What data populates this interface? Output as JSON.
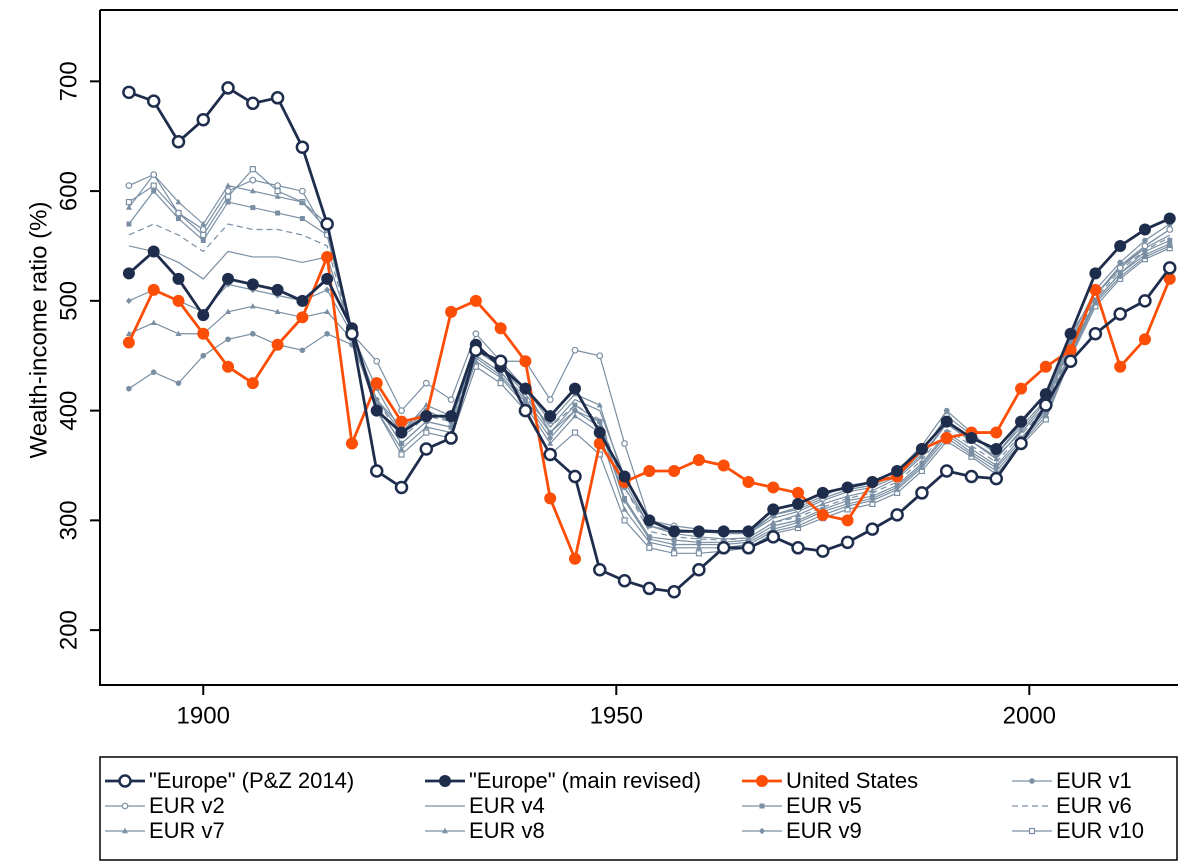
{
  "chart_data": {
    "type": "line",
    "ylabel": "Wealth-income ratio (%)",
    "x": [
      1891,
      1894,
      1897,
      1900,
      1903,
      1906,
      1909,
      1912,
      1915,
      1918,
      1921,
      1924,
      1927,
      1930,
      1933,
      1936,
      1939,
      1942,
      1945,
      1948,
      1951,
      1954,
      1957,
      1960,
      1963,
      1966,
      1969,
      1972,
      1975,
      1978,
      1981,
      1984,
      1987,
      1990,
      1993,
      1996,
      1999,
      2002,
      2005,
      2008,
      2011,
      2014,
      2017
    ],
    "xlim": [
      1887.5,
      2018
    ],
    "xticks": [
      1900,
      1950,
      2000
    ],
    "ylim": [
      150,
      765
    ],
    "yticks": [
      200,
      300,
      400,
      500,
      600,
      700
    ],
    "series": [
      {
        "name": "\"Europe\" (P&Z 2014)",
        "color": "#1f2d4d",
        "marker": "open-circle",
        "dash": false,
        "values": [
          690,
          682,
          645,
          665,
          694,
          680,
          685,
          640,
          570,
          470,
          345,
          330,
          365,
          375,
          455,
          445,
          400,
          360,
          340,
          255,
          245,
          238,
          235,
          255,
          275,
          275,
          285,
          275,
          272,
          280,
          292,
          305,
          325,
          345,
          340,
          338,
          370,
          405,
          445,
          470,
          488,
          500,
          530
        ]
      },
      {
        "name": "\"Europe\" (main revised)",
        "color": "#1f2d4d",
        "marker": "circle",
        "dash": false,
        "values": [
          525,
          545,
          520,
          487,
          520,
          515,
          510,
          500,
          520,
          475,
          400,
          380,
          395,
          395,
          460,
          440,
          420,
          395,
          420,
          380,
          340,
          300,
          290,
          290,
          290,
          290,
          310,
          315,
          325,
          330,
          335,
          345,
          365,
          390,
          375,
          365,
          390,
          415,
          470,
          525,
          550,
          565,
          575
        ]
      },
      {
        "name": "United States",
        "color": "#fc4e07",
        "marker": "circle",
        "dash": false,
        "values": [
          462,
          510,
          500,
          470,
          440,
          425,
          460,
          485,
          540,
          370,
          425,
          390,
          395,
          490,
          500,
          475,
          445,
          320,
          265,
          370,
          335,
          345,
          345,
          355,
          350,
          335,
          330,
          325,
          305,
          300,
          335,
          340,
          365,
          375,
          380,
          380,
          420,
          440,
          455,
          510,
          440,
          465,
          520
        ]
      },
      {
        "name": "EUR v1",
        "color": "#7a8fa3",
        "marker": "small-circle",
        "dash": false,
        "values": [
          420,
          435,
          425,
          450,
          465,
          470,
          460,
          455,
          470,
          460,
          410,
          385,
          400,
          390,
          455,
          445,
          420,
          380,
          400,
          390,
          330,
          295,
          290,
          290,
          288,
          288,
          305,
          312,
          322,
          332,
          335,
          345,
          368,
          400,
          380,
          360,
          385,
          410,
          465,
          510,
          535,
          555,
          570
        ]
      },
      {
        "name": "EUR v2",
        "color": "#7a8fa3",
        "marker": "small-open-circle",
        "dash": false,
        "values": [
          605,
          615,
          580,
          565,
          600,
          610,
          605,
          600,
          560,
          470,
          445,
          400,
          425,
          410,
          470,
          445,
          445,
          410,
          455,
          450,
          370,
          300,
          295,
          292,
          290,
          290,
          305,
          310,
          320,
          328,
          332,
          342,
          362,
          395,
          378,
          360,
          388,
          415,
          470,
          505,
          530,
          550,
          565
        ]
      },
      {
        "name": "EUR v4",
        "color": "#7a8fa3",
        "marker": "none",
        "dash": false,
        "values": [
          550,
          545,
          535,
          520,
          545,
          540,
          540,
          535,
          540,
          470,
          410,
          380,
          400,
          390,
          455,
          440,
          415,
          385,
          410,
          400,
          340,
          300,
          292,
          290,
          288,
          288,
          302,
          308,
          318,
          326,
          330,
          340,
          360,
          388,
          372,
          358,
          380,
          405,
          460,
          505,
          530,
          548,
          560
        ]
      },
      {
        "name": "EUR v5",
        "color": "#7a8fa3",
        "marker": "square",
        "dash": false,
        "values": [
          570,
          600,
          575,
          555,
          590,
          585,
          580,
          575,
          560,
          470,
          405,
          370,
          390,
          385,
          450,
          435,
          410,
          380,
          405,
          390,
          320,
          285,
          282,
          280,
          280,
          282,
          295,
          300,
          310,
          318,
          322,
          332,
          352,
          380,
          365,
          350,
          375,
          400,
          455,
          500,
          525,
          545,
          555
        ]
      },
      {
        "name": "EUR v6",
        "color": "#7a8fa3",
        "marker": "none",
        "dash": true,
        "values": [
          560,
          570,
          560,
          545,
          570,
          565,
          565,
          560,
          550,
          470,
          410,
          375,
          395,
          390,
          450,
          435,
          412,
          385,
          405,
          392,
          330,
          290,
          285,
          283,
          282,
          284,
          298,
          303,
          312,
          320,
          325,
          335,
          355,
          383,
          368,
          353,
          378,
          402,
          458,
          502,
          528,
          546,
          558
        ]
      },
      {
        "name": "EUR v7",
        "color": "#7a8fa3",
        "marker": "triangle",
        "dash": false,
        "values": [
          585,
          615,
          590,
          570,
          605,
          600,
          595,
          590,
          570,
          470,
          420,
          380,
          405,
          395,
          460,
          440,
          420,
          390,
          415,
          405,
          335,
          295,
          288,
          285,
          283,
          284,
          298,
          305,
          315,
          322,
          327,
          338,
          358,
          388,
          372,
          356,
          382,
          408,
          463,
          505,
          532,
          550,
          565
        ]
      },
      {
        "name": "EUR v8",
        "color": "#7a8fa3",
        "marker": "triangle",
        "dash": false,
        "values": [
          470,
          480,
          470,
          470,
          490,
          495,
          490,
          485,
          490,
          465,
          400,
          365,
          385,
          380,
          445,
          430,
          405,
          370,
          395,
          380,
          310,
          280,
          275,
          275,
          275,
          278,
          290,
          295,
          305,
          313,
          318,
          328,
          348,
          375,
          360,
          345,
          370,
          395,
          450,
          498,
          522,
          540,
          550
        ]
      },
      {
        "name": "EUR v9",
        "color": "#7a8fa3",
        "marker": "diamond",
        "dash": false,
        "values": [
          500,
          510,
          500,
          490,
          515,
          510,
          505,
          500,
          510,
          470,
          405,
          370,
          390,
          385,
          448,
          432,
          408,
          375,
          400,
          385,
          318,
          283,
          278,
          278,
          278,
          280,
          292,
          298,
          308,
          315,
          320,
          330,
          350,
          378,
          362,
          348,
          372,
          398,
          452,
          500,
          525,
          542,
          552
        ]
      },
      {
        "name": "EUR v10",
        "color": "#7a8fa3",
        "marker": "open-square",
        "dash": false,
        "values": [
          590,
          605,
          580,
          560,
          595,
          620,
          600,
          590,
          565,
          470,
          400,
          360,
          380,
          375,
          440,
          425,
          400,
          360,
          380,
          360,
          300,
          275,
          270,
          270,
          272,
          275,
          288,
          293,
          302,
          310,
          315,
          325,
          345,
          372,
          358,
          342,
          368,
          392,
          448,
          495,
          520,
          538,
          548
        ]
      }
    ]
  }
}
